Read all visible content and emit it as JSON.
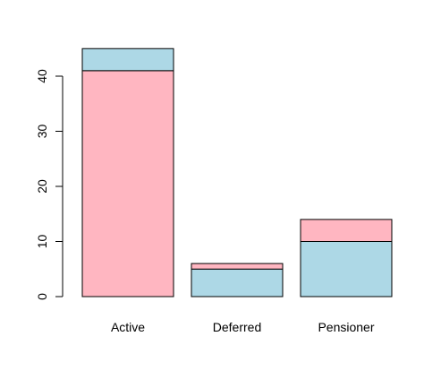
{
  "chart_data": {
    "type": "bar",
    "stacked": true,
    "categories": [
      "Active",
      "Deferred",
      "Pensioner"
    ],
    "stacks": [
      [
        {
          "value": 41,
          "color": "#ffb6c1"
        },
        {
          "value": 4,
          "color": "#add8e6"
        }
      ],
      [
        {
          "value": 5,
          "color": "#add8e6"
        },
        {
          "value": 1,
          "color": "#ffb6c1"
        }
      ],
      [
        {
          "value": 10,
          "color": "#add8e6"
        },
        {
          "value": 4,
          "color": "#ffb6c1"
        }
      ]
    ],
    "totals": [
      45,
      6,
      14
    ],
    "ylim": [
      0,
      45
    ],
    "yticks": [
      0,
      10,
      20,
      30,
      40
    ],
    "title": "",
    "xlabel": "",
    "ylabel": "",
    "grid": false,
    "legend": "none"
  }
}
